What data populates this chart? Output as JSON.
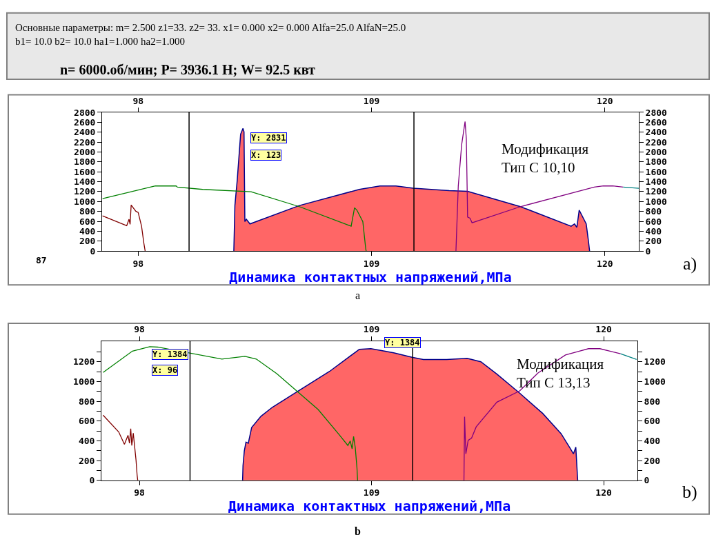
{
  "chart_data": [
    {
      "type": "line",
      "title": "Основные параметры: m= 2.500 z1=33. z2= 33. x1= 0.000 x2= 0.000 Alfa=25.0 AlfaN=25.0\nb1= 10.0 b2= 10.0 ha1=1.000 ha2=1.000",
      "subtitle": "n= 6000.об/мин; P= 3936.1 H; W= 92.5 квт",
      "xlabel": "Динамика контактных напряжений,МПа",
      "annotations": [
        "Y: 2831",
        "X: 123",
        "87",
        "Модификация\nТип С 10,10",
        "a)",
        "a"
      ],
      "xlim": [
        96.3,
        121.6
      ],
      "xticks": [
        98,
        109,
        120
      ],
      "x2lim": [
        96.3,
        121.6
      ],
      "x2ticks": [
        98,
        109,
        120
      ],
      "ylim": [
        0,
        2800
      ],
      "yticks": [
        0,
        200,
        400,
        600,
        800,
        1000,
        1200,
        1400,
        1600,
        1800,
        2000,
        2200,
        2400,
        2600,
        2800
      ],
      "y2lim": [
        0,
        2800
      ],
      "y2ticks": [
        0,
        200,
        400,
        600,
        800,
        1000,
        1200,
        1400,
        1600,
        1800,
        2000,
        2200,
        2400,
        2600,
        2800
      ],
      "marker": "none",
      "line_style": "solid",
      "ref_lines": [
        {
          "axis": "x",
          "value": 100.4,
          "color": "#000000"
        },
        {
          "axis": "x",
          "value": 111.0,
          "color": "#000000"
        }
      ],
      "series": [
        {
          "type": "area",
          "color": "#ff6666",
          "x": [
            102.51,
            102.56,
            102.67,
            102.83,
            102.94,
            102.99,
            103.03,
            103.1,
            103.27,
            105.6,
            108.42,
            109.4,
            110.15,
            110.97,
            112.66,
            113.53,
            116.02,
            118.41,
            118.57,
            118.68,
            118.79,
            119.12,
            119.22,
            119.28
          ],
          "values": [
            0,
            919,
            1430,
            2359,
            2475,
            2405,
            594,
            641,
            548,
            919,
            1244,
            1314,
            1314,
            1268,
            1221,
            1207,
            896,
            501,
            548,
            478,
            826,
            548,
            223,
            0
          ]
        },
        {
          "color": "#800000",
          "x": [
            96.32,
            97.46,
            97.57,
            97.62,
            97.67,
            97.89,
            98.0,
            98.16,
            98.27,
            98.33
          ],
          "values": [
            710,
            511,
            641,
            539,
            929,
            803,
            780,
            501,
            153,
            0
          ]
        },
        {
          "color": "#008000",
          "x": [
            96.32,
            98.81,
            99.79,
            99.85,
            101.04,
            103.32,
            105.6,
            108.04,
            108.2,
            108.31,
            108.59,
            108.73,
            108.75
          ],
          "values": [
            1059,
            1314,
            1314,
            1291,
            1244,
            1198,
            896,
            501,
            873,
            826,
            594,
            37,
            0
          ]
        },
        {
          "color": "#800080",
          "x": [
            112.98,
            113.09,
            113.25,
            113.41,
            113.47,
            113.53,
            113.64,
            113.74,
            116.02,
            119.5,
            119.93,
            120.37,
            120.86
          ],
          "values": [
            0,
            1314,
            2150,
            2614,
            2266,
            687,
            664,
            571,
            896,
            1291,
            1314,
            1314,
            1291
          ]
        },
        {
          "color": "#008080",
          "x": [
            120.86,
            121.6
          ],
          "values": [
            1291,
            1268
          ]
        }
      ]
    },
    {
      "type": "line",
      "xlabel": "Динамика контактных напряжений,МПа",
      "annotations": [
        "Y: 1384",
        "X: 96",
        "Y: 1384",
        "Модификация\nТип С 13,13",
        "b)",
        "b"
      ],
      "xlim": [
        96.2,
        121.6
      ],
      "xticks": [
        98,
        109,
        120
      ],
      "x2lim": [
        96.2,
        121.6
      ],
      "x2ticks": [
        98,
        109,
        120
      ],
      "ylim": [
        0,
        1410
      ],
      "yticks": [
        0,
        {
          "value": 100,
          "label": null
        },
        200,
        {
          "value": 300,
          "label": null
        },
        400,
        {
          "value": 500,
          "label": null
        },
        600,
        {
          "value": 700,
          "label": null
        },
        800,
        {
          "value": 900,
          "label": null
        },
        1000,
        {
          "value": 1100,
          "label": null
        },
        1200,
        {
          "value": 1300,
          "label": null
        }
      ],
      "y2lim": [
        0,
        1410
      ],
      "y2ticks": [
        0,
        {
          "value": 100,
          "label": null
        },
        200,
        {
          "value": 300,
          "label": null
        },
        400,
        {
          "value": 500,
          "label": null
        },
        600,
        {
          "value": 700,
          "label": null
        },
        800,
        {
          "value": 900,
          "label": null
        },
        1000,
        {
          "value": 1100,
          "label": null
        },
        1200,
        {
          "value": 1300,
          "label": null
        }
      ],
      "marker": "none",
      "line_style": "solid",
      "ref_lines": [
        {
          "axis": "x",
          "value": 100.4,
          "color": "#000000"
        },
        {
          "axis": "x",
          "value": 110.95,
          "color": "#000000"
        }
      ],
      "series": [
        {
          "type": "area",
          "color": "#ff6666",
          "x": [
            102.89,
            102.91,
            102.97,
            103.05,
            103.16,
            103.32,
            103.76,
            104.3,
            105.49,
            107.01,
            108.42,
            108.97,
            110.05,
            110.92,
            111.46,
            112.56,
            113.53,
            114.18,
            114.94,
            116.02,
            117.11,
            117.98,
            118.41,
            118.57,
            118.68,
            118.74,
            118.77
          ],
          "values": [
            0,
            148,
            295,
            386,
            375,
            534,
            648,
            739,
            898,
            1102,
            1325,
            1332,
            1291,
            1245,
            1223,
            1223,
            1234,
            1200,
            1075,
            882,
            677,
            473,
            325,
            268,
            336,
            109,
            0
          ]
        },
        {
          "color": "#800000",
          "x": [
            96.28,
            97.02,
            97.29,
            97.46,
            97.53,
            97.59,
            97.64,
            97.71,
            97.78,
            97.84,
            97.89,
            97.92
          ],
          "values": [
            659,
            489,
            364,
            455,
            375,
            523,
            352,
            477,
            330,
            205,
            57,
            0
          ]
        },
        {
          "color": "#008000",
          "x": [
            96.28,
            97.67,
            98.49,
            98.87,
            101.91,
            103.0,
            103.54,
            104.51,
            105.49,
            106.47,
            107.45,
            107.88,
            107.99,
            108.08,
            108.15,
            108.23,
            108.31,
            108.34
          ],
          "values": [
            1091,
            1307,
            1352,
            1348,
            1227,
            1255,
            1227,
            1080,
            898,
            716,
            466,
            352,
            398,
            318,
            443,
            330,
            125,
            0
          ]
        },
        {
          "color": "#800080",
          "x": [
            113.38,
            113.41,
            113.47,
            113.58,
            113.74,
            113.96,
            114.94,
            116.02,
            116.89,
            118.19,
            119.28,
            119.82,
            120.8
          ],
          "values": [
            0,
            643,
            268,
            405,
            427,
            541,
            791,
            905,
            1086,
            1268,
            1332,
            1332,
            1280
          ]
        },
        {
          "color": "#008080",
          "x": [
            120.8,
            121.56
          ],
          "values": [
            1280,
            1223
          ]
        }
      ]
    }
  ]
}
